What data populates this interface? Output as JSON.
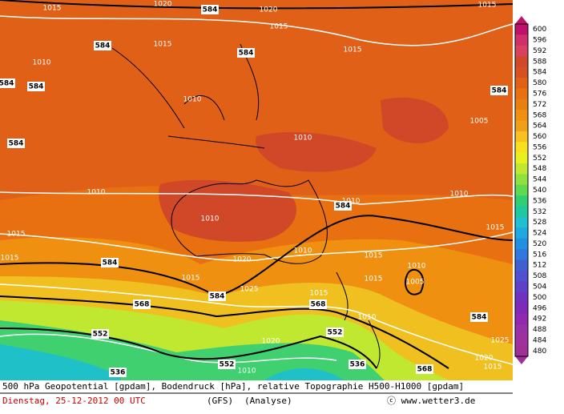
{
  "footer": {
    "description": "500 hPa Geopotential [gpdam], Bodendruck [hPa], relative Topographie H500-H1000 [gpdam]",
    "date": "Dienstag, 25-12-2012  00 UTC",
    "model": "(GFS)",
    "run": "(Analyse)",
    "credit": "ⓒ www.wetter3.de"
  },
  "map": {
    "labels": [
      "1015",
      "1020",
      "584",
      "1020",
      "1015",
      "1015",
      "1015",
      "1010",
      "584",
      "584",
      "1015",
      "584",
      "584",
      "1010",
      "584",
      "1005",
      "1010",
      "584",
      "1010",
      "1010",
      "1010",
      "1010",
      "584",
      "1015",
      "1015",
      "584",
      "1015",
      "1020",
      "1010",
      "1015",
      "1010",
      "1015",
      "1005",
      "1015",
      "584",
      "1025",
      "1015",
      "568",
      "568",
      "584",
      "552",
      "1010",
      "552",
      "1020",
      "552",
      "536",
      "536",
      "1010",
      "568",
      "1020",
      "1015",
      "1025"
    ]
  },
  "legend": {
    "levels": [
      600,
      596,
      592,
      588,
      584,
      580,
      576,
      572,
      568,
      564,
      560,
      556,
      552,
      548,
      544,
      540,
      536,
      532,
      528,
      524,
      520,
      516,
      512,
      508,
      504,
      500,
      496,
      492,
      488,
      484,
      480
    ],
    "colors": [
      "#c0106a",
      "#d0306a",
      "#d84060",
      "#d04828",
      "#d85020",
      "#e06018",
      "#e87010",
      "#e88010",
      "#f09010",
      "#f0a018",
      "#f8c020",
      "#f8e020",
      "#e8f020",
      "#c0e830",
      "#90e040",
      "#60d850",
      "#30d070",
      "#20c8a0",
      "#20c0d0",
      "#20a8e0",
      "#2090e0",
      "#3078e0",
      "#4060d0",
      "#5050d0",
      "#6040c8",
      "#7030c0",
      "#8028b8",
      "#9028b0",
      "#9830a8",
      "#a030a0",
      "#a03098"
    ]
  }
}
